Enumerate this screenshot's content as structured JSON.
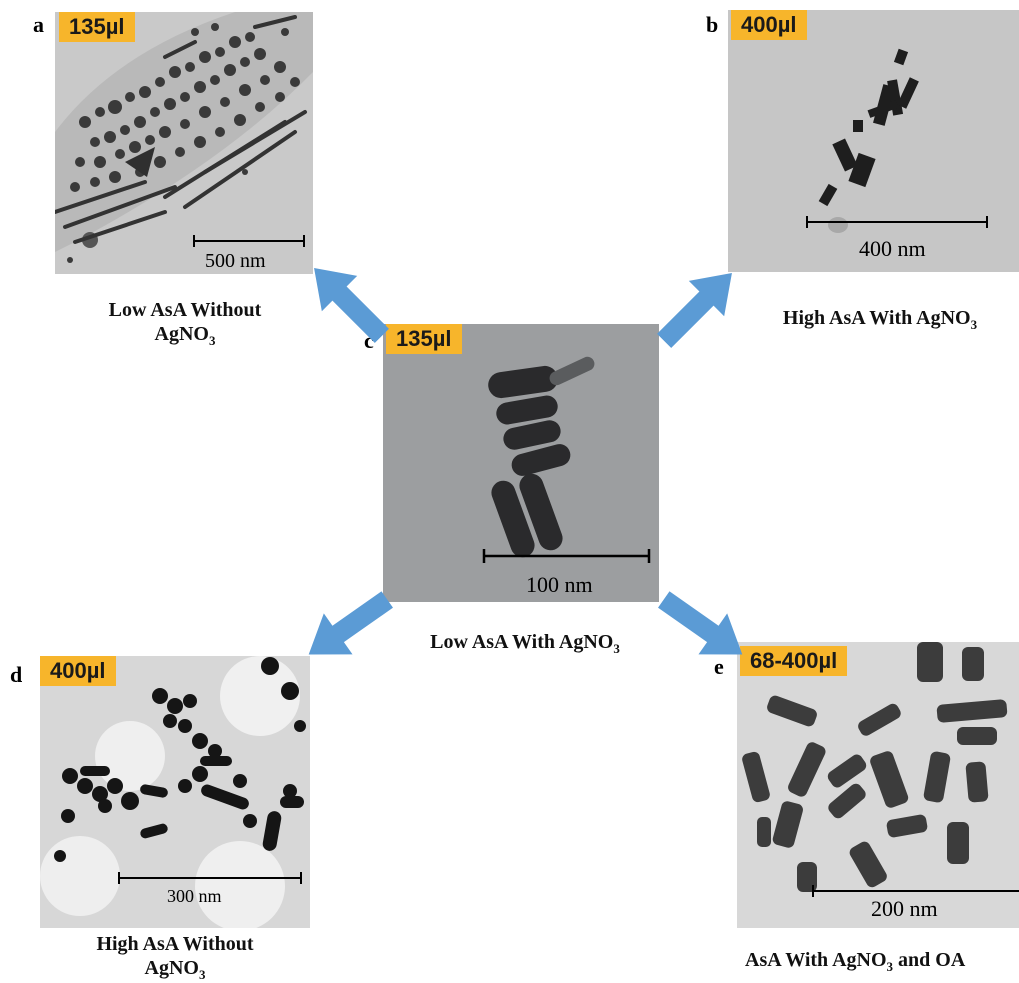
{
  "panels": {
    "a": {
      "letter": "a",
      "badge": "135µl",
      "scale": "500 nm",
      "caption_line1": "Low AsA Without",
      "caption_chem": "AgNO",
      "caption_sub": "3"
    },
    "b": {
      "letter": "b",
      "badge": "400µl",
      "scale": "400 nm",
      "caption_pre": "High AsA With AgNO",
      "caption_sub": "3"
    },
    "c": {
      "letter": "c",
      "badge": "135µl",
      "scale": "100 nm",
      "caption_pre": "Low AsA With AgNO",
      "caption_sub": "3"
    },
    "d": {
      "letter": "d",
      "badge": "400µl",
      "scale": "300 nm",
      "caption_line1": "High AsA Without",
      "caption_chem": "AgNO",
      "caption_sub": "3"
    },
    "e": {
      "letter": "e",
      "badge": "68-400µl",
      "scale": "200 nm",
      "caption_pre": "AsA With AgNO",
      "caption_sub": "3",
      "caption_post": " and OA"
    }
  },
  "colors": {
    "badge": "#f7b52b",
    "arrow": "#5b9bd5"
  }
}
